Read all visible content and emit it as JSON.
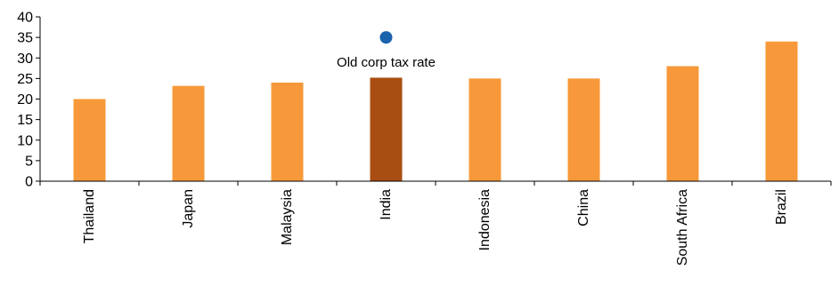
{
  "chart_data": {
    "type": "bar",
    "categories": [
      "Thailand",
      "Japan",
      "Malaysia",
      "India",
      "Indonesia",
      "China",
      "South Africa",
      "Brazil"
    ],
    "values": [
      20,
      23.2,
      24,
      25.2,
      25,
      25,
      28,
      34
    ],
    "highlight_category": "India",
    "ylim": [
      0,
      40
    ],
    "yticks": [
      0,
      5,
      10,
      15,
      20,
      25,
      30,
      35,
      40
    ],
    "grid": false,
    "legend": "none",
    "annotation": {
      "text": "Old corp tax rate",
      "category": "India",
      "value": 35
    },
    "colors": {
      "bar": "#F7993A",
      "highlight": "#A94E12",
      "marker": "#1B63AD",
      "axis": "#000000"
    }
  }
}
